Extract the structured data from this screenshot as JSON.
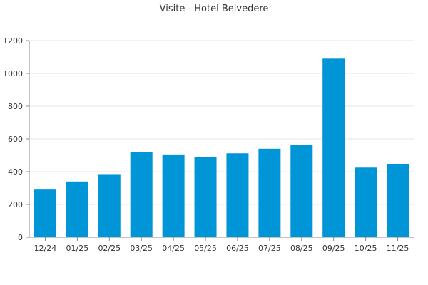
{
  "chart_data": {
    "type": "bar",
    "title": "Visite - Hotel Belvedere",
    "xlabel": "",
    "ylabel": "",
    "categories": [
      "12/24",
      "01/25",
      "02/25",
      "03/25",
      "04/25",
      "05/25",
      "06/25",
      "07/25",
      "08/25",
      "09/25",
      "10/25",
      "11/25"
    ],
    "values": [
      295,
      340,
      385,
      520,
      505,
      490,
      512,
      540,
      565,
      1090,
      425,
      448
    ],
    "ylim": [
      0,
      1200
    ],
    "yticks": [
      "0",
      "200",
      "400",
      "600",
      "800",
      "1000",
      "1200"
    ],
    "grid": true,
    "legend": "none",
    "bar_color": "#0095d6"
  }
}
